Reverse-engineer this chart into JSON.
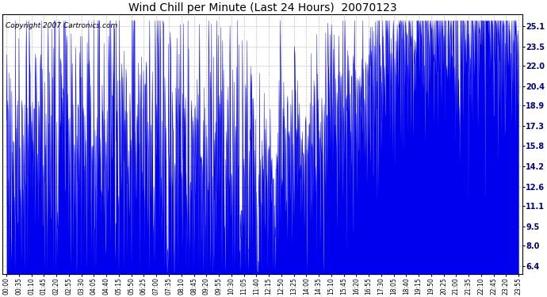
{
  "title": "Wind Chill per Minute (Last 24 Hours)  20070123",
  "copyright": "Copyright 2007 Cartronics.com",
  "bar_color": "#0000EE",
  "background_color": "#FFFFFF",
  "plot_bg_color": "#FFFFFF",
  "grid_color": "#AAAAAA",
  "yticks": [
    6.4,
    8.0,
    9.5,
    11.1,
    12.6,
    14.2,
    15.8,
    17.3,
    18.9,
    20.4,
    22.0,
    23.5,
    25.1
  ],
  "ylim": [
    5.8,
    26.0
  ],
  "xtick_labels": [
    "00:00",
    "00:35",
    "01:10",
    "01:45",
    "02:20",
    "02:55",
    "03:30",
    "04:05",
    "04:40",
    "05:15",
    "05:50",
    "06:25",
    "07:00",
    "07:35",
    "08:10",
    "08:45",
    "09:20",
    "09:55",
    "10:30",
    "11:05",
    "11:40",
    "12:15",
    "12:50",
    "13:25",
    "14:00",
    "14:35",
    "15:10",
    "15:45",
    "16:20",
    "16:55",
    "17:30",
    "18:05",
    "18:40",
    "19:15",
    "19:50",
    "20:25",
    "21:00",
    "21:35",
    "22:10",
    "22:45",
    "23:20",
    "23:55"
  ],
  "num_points": 1440,
  "seed": 77,
  "figwidth": 6.9,
  "figheight": 3.75,
  "dpi": 100
}
